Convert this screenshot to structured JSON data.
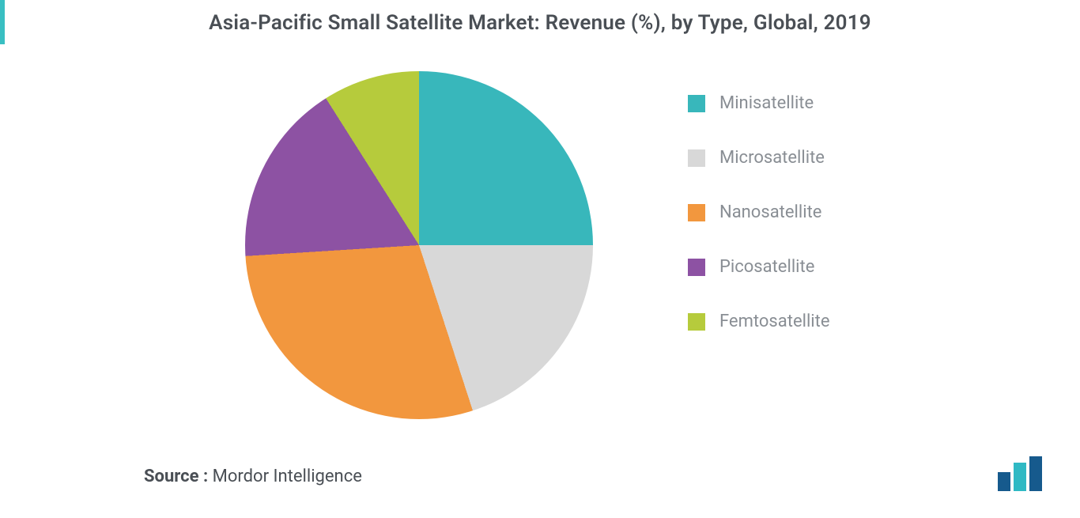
{
  "title": "Asia-Pacific Small Satellite Market: Revenue (%), by Type, Global, 2019",
  "title_color": "#4a4f55",
  "title_fontsize": 26,
  "accent_bar_color": "#39bfc2",
  "source": {
    "prefix": "Source :",
    "name": "Mordor Intelligence",
    "color": "#4a4f55"
  },
  "legend_text_color": "#898e94",
  "logo": {
    "bar1_color": "#165a8d",
    "bar2_color": "#2fb9c4",
    "bar3_color": "#165a8d"
  },
  "pie_chart": {
    "type": "pie",
    "background_color": "#ffffff",
    "start_angle_deg": 0,
    "slices": [
      {
        "label": "Minisatellite",
        "value": 25,
        "color": "#38b7bb"
      },
      {
        "label": "Microsatellite",
        "value": 20,
        "color": "#d8d8d8"
      },
      {
        "label": "Nanosatellite",
        "value": 29,
        "color": "#f2973e"
      },
      {
        "label": "Picosatellite",
        "value": 17,
        "color": "#8d52a3"
      },
      {
        "label": "Femtosatellite",
        "value": 9,
        "color": "#b6cb3c"
      }
    ]
  }
}
